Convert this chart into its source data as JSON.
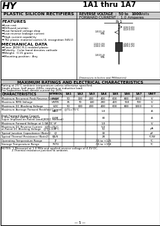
{
  "title": "1A1 thru 1A7",
  "logo_text": "HY",
  "header_left": "PLASTIC SILICON RECTIFIERS",
  "header_right_line1_pre": "REVERSE VOLTAGE  :  50 to ",
  "header_right_line1_bold": "1000",
  "header_right_line1_post": " Volts",
  "header_right_line2": "FORWARD CURRENT :  1.0 Amperes",
  "features_title": "FEATURES",
  "features": [
    "Low cost",
    "Diffused junction",
    "Low forward voltage drop",
    "Low reverse leakage current",
    "High current capability",
    "The plastic material carries UL recognition 94V-0"
  ],
  "mech_title": "MECHANICAL DATA",
  "mech": [
    "Case: JEDEC R-1 molded plastic",
    "Polarity:  Color band denotes cathode",
    "Weight:  0.15 grams",
    "Mounting position : Any"
  ],
  "ratings_title": "MAXIMUM RATINGS AND ELECTRICAL CHARACTERISTICS",
  "ratings_note1": "Rating at 25°C ambient temperature unless otherwise specified.",
  "ratings_note2": "Single phase, half wave ,60Hz, resistive or inductive load.",
  "ratings_note3": "For capacitive load, derate current by 20%.",
  "table_col_headers": [
    "CHARACTERISTICS",
    "SYMBOL",
    "1A1",
    "1A2",
    "1A3",
    "1A4",
    "1A5",
    "1A6",
    "1A7",
    "UNIT"
  ],
  "table_rows": [
    [
      "Maximum Recurrent Peak Reverse Voltage",
      "VRRM",
      "50",
      "100",
      "200",
      "400",
      "600",
      "800",
      "1000",
      "V"
    ],
    [
      "Maximum RMS Voltage",
      "VRMS",
      "35",
      "70",
      "140",
      "280",
      "420",
      "560",
      "700",
      "V"
    ],
    [
      "Maximum DC Blocking Voltage",
      "VDC",
      "50",
      "100",
      "200",
      "400",
      "600",
      "800",
      "1000",
      "V"
    ],
    [
      "Maximum Average Forward Rectified Current   @TL=75°C",
      "IAVG",
      "",
      "",
      "",
      "",
      "1.0",
      "",
      "",
      "A"
    ],
    [
      "Peak Forward Surge Current\n8.3ms Single Half Sine-Wave\nSuper Imposed on Rated Load(JEDEC Method)",
      "IFSM",
      "",
      "",
      "",
      "",
      "30",
      "",
      "",
      "A"
    ],
    [
      "Maximum Forward Voltage at 1.0A DC",
      "VF",
      "",
      "",
      "",
      "",
      "1.0",
      "",
      "",
      "V"
    ],
    [
      "Maximum DC Reverse Current   @TJ=25°C\nat Rated DC Blocking Voltage   @TJ=100°C",
      "IR",
      "",
      "",
      "",
      "",
      "5.0\n50",
      "",
      "",
      "μA"
    ],
    [
      "Typical Junction Capacitance (Note1)",
      "CJ",
      "",
      "",
      "",
      "",
      "10",
      "",
      "",
      "pF"
    ],
    [
      "Typical Thermal Resistance (Note2)",
      "RJUS",
      "",
      "",
      "",
      "",
      "28",
      "",
      "",
      "°C/W"
    ],
    [
      "Operating Temperature Range",
      "TJ",
      "",
      "",
      "",
      "",
      "-55 to +125",
      "",
      "",
      "°C"
    ],
    [
      "Storage Temperature Range",
      "TSTG",
      "",
      "",
      "",
      "",
      "-55 to +150",
      "",
      "",
      "°C"
    ]
  ],
  "notes": [
    "NOTES: 1.Measured at 1.0 MHz and applied reverse voltage of 4.0V DC.",
    "            2.Thermal resistance junction to ambient."
  ],
  "page_num": "5",
  "bg_color": "#ffffff",
  "gray_bg": "#cccccc",
  "black": "#000000"
}
